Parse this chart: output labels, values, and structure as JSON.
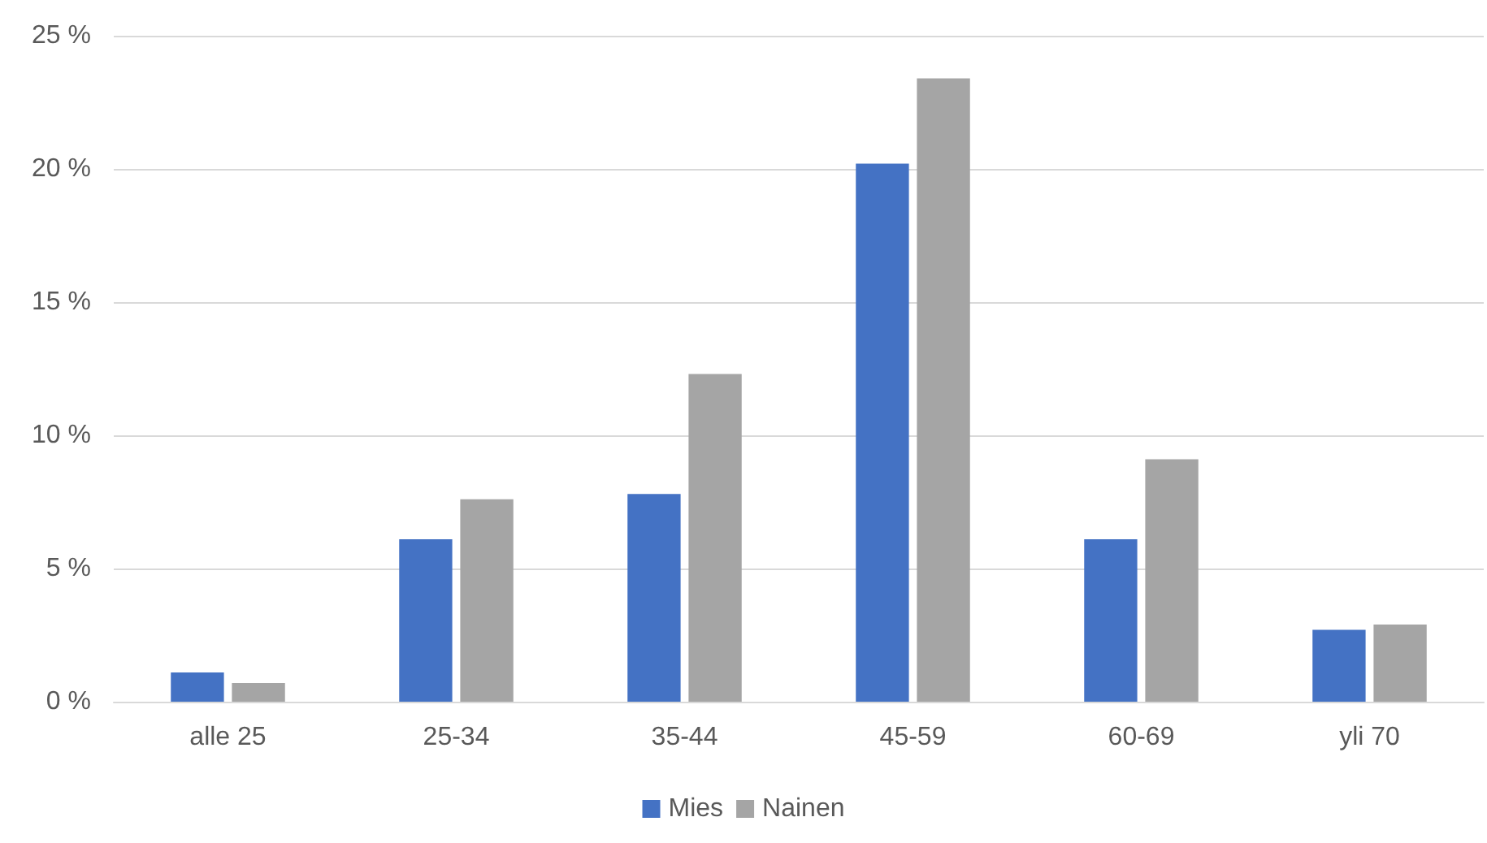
{
  "chart_data": {
    "type": "bar",
    "categories": [
      "alle 25",
      "25-34",
      "35-44",
      "45-59",
      "60-69",
      "yli 70"
    ],
    "series": [
      {
        "name": "Mies",
        "color": "#4472c4",
        "values": [
          1.1,
          6.1,
          7.8,
          20.2,
          6.1,
          2.7
        ]
      },
      {
        "name": "Nainen",
        "color": "#a5a5a5",
        "values": [
          0.7,
          7.6,
          12.3,
          23.4,
          9.1,
          2.9
        ]
      }
    ],
    "ylim": [
      0,
      25
    ],
    "yticks": [
      {
        "value": 0,
        "label": "0 %"
      },
      {
        "value": 5,
        "label": "5 %"
      },
      {
        "value": 10,
        "label": "10 %"
      },
      {
        "value": 15,
        "label": "15 %"
      },
      {
        "value": 20,
        "label": "20 %"
      },
      {
        "value": 25,
        "label": "25 %"
      }
    ],
    "grid": "y",
    "legend": "bottom"
  }
}
